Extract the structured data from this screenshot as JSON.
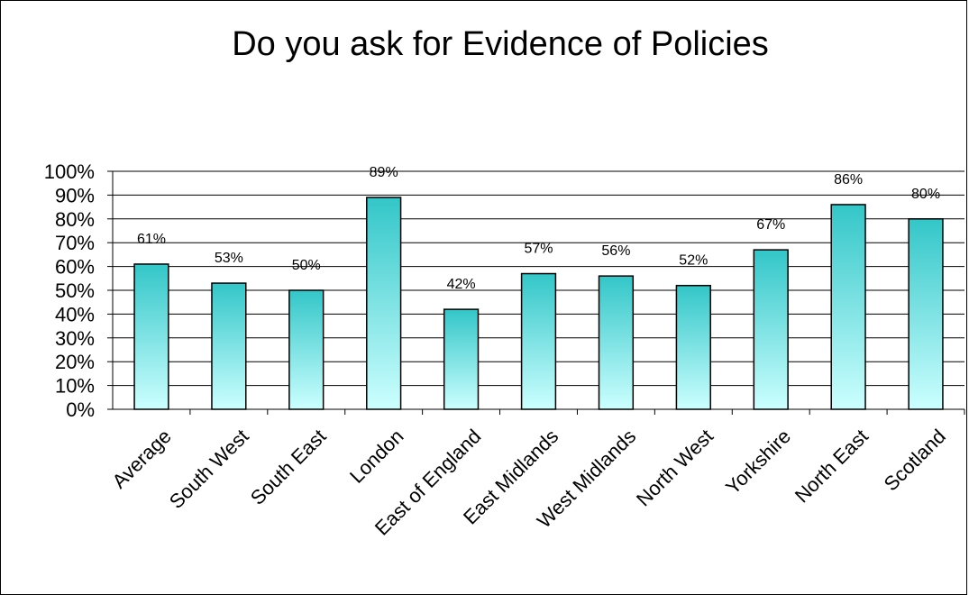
{
  "chart_data": {
    "type": "bar",
    "title": "Do you ask for Evidence of Policies",
    "xlabel": "",
    "ylabel": "",
    "categories": [
      "Average",
      "South West",
      "South East",
      "London",
      "East of England",
      "East Midlands",
      "West Midlands",
      "North West",
      "Yorkshire",
      "North East",
      "Scotland"
    ],
    "values": [
      61,
      53,
      50,
      89,
      42,
      57,
      56,
      52,
      67,
      86,
      80
    ],
    "data_labels": [
      "61%",
      "53%",
      "50%",
      "89%",
      "42%",
      "57%",
      "56%",
      "52%",
      "67%",
      "86%",
      "80%"
    ],
    "ylim": [
      0,
      100
    ],
    "y_ticks": [
      0,
      10,
      20,
      30,
      40,
      50,
      60,
      70,
      80,
      90,
      100
    ],
    "y_tick_labels": [
      "0%",
      "10%",
      "20%",
      "30%",
      "40%",
      "50%",
      "60%",
      "70%",
      "80%",
      "90%",
      "100%"
    ],
    "grid": true,
    "legend": "none",
    "colors": {
      "bar_top": "#33c6c8",
      "bar_bottom": "#ccffff",
      "bar_border": "#000000",
      "grid": "#000000"
    }
  }
}
